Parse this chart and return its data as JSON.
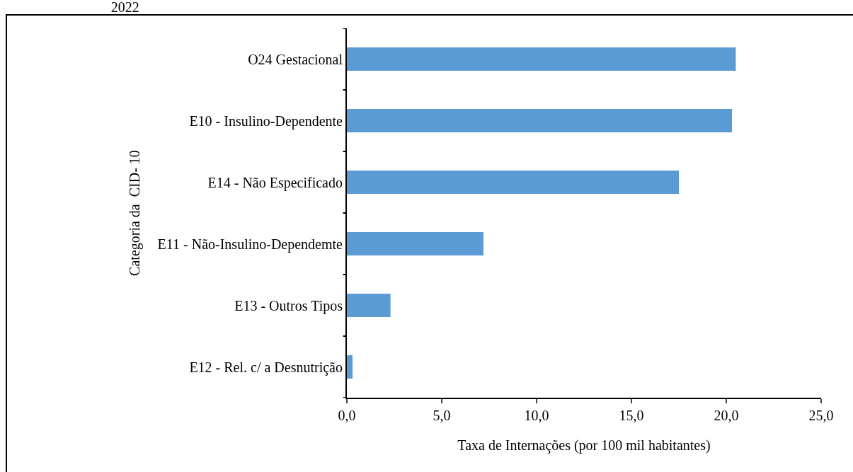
{
  "chart_data": {
    "type": "bar",
    "orientation": "horizontal",
    "title": "2022",
    "ylabel": "Categoria da  CID- 10",
    "xlabel": "Taxa de Internações (por 100 mil habitantes)",
    "categories": [
      "O24 Gestacional",
      "E10 - Insulino-Dependente",
      "E14 - Não Especificado",
      "E11 - Não-Insulino-Dependemte",
      "E13 - Outros Tipos",
      "E12 - Rel. c/ a Desnutrição"
    ],
    "values": [
      20.5,
      20.3,
      17.5,
      7.2,
      2.3,
      0.3
    ],
    "color": "#5b9bd5",
    "xlim": [
      0,
      25
    ],
    "xticks": [
      {
        "value": 0,
        "label": "0,0"
      },
      {
        "value": 5,
        "label": "5,0"
      },
      {
        "value": 10,
        "label": "10,0"
      },
      {
        "value": 15,
        "label": "15,0"
      },
      {
        "value": 20,
        "label": "20,0"
      },
      {
        "value": 25,
        "label": "25,0"
      }
    ],
    "grid": false,
    "legend": false
  }
}
